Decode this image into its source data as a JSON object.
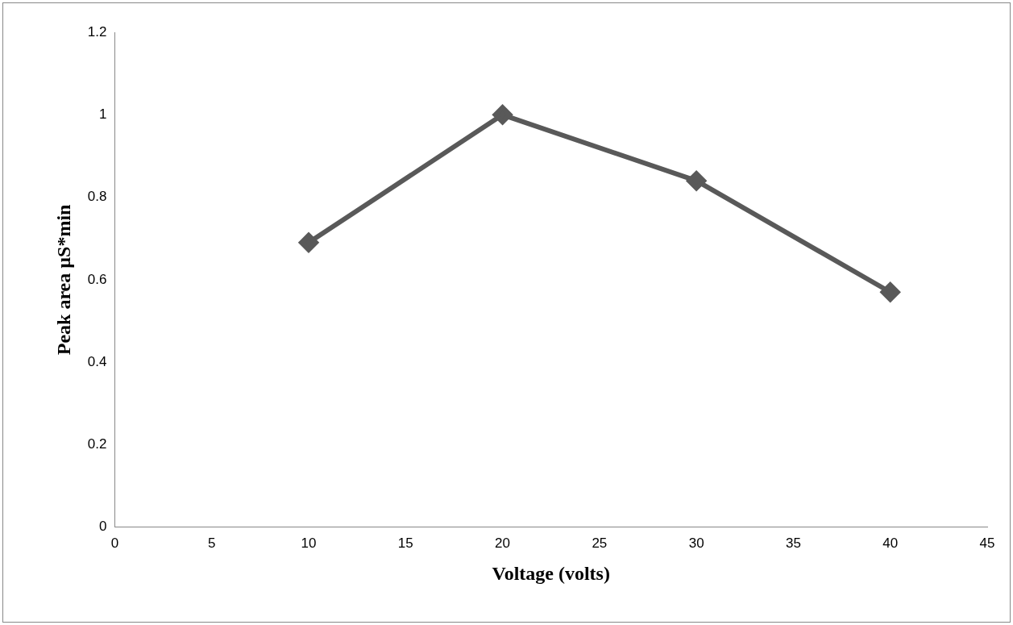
{
  "chart_data": {
    "type": "line",
    "xlabel": "Voltage (volts)",
    "ylabel": "Peak area µS*min",
    "x": [
      10,
      20,
      30,
      40
    ],
    "series": [
      {
        "color": "#595959",
        "values": [
          0.69,
          1.0,
          0.84,
          0.57
        ]
      }
    ],
    "xlim": [
      0,
      45
    ],
    "xticks": [
      0,
      5,
      10,
      15,
      20,
      25,
      30,
      35,
      40,
      45
    ],
    "ylim": [
      0,
      1.2
    ],
    "yticks": [
      0,
      0.2,
      0.4,
      0.6,
      0.8,
      1,
      1.2
    ],
    "grid": false,
    "legend": false,
    "marker": "diamond",
    "line_style": "solid"
  }
}
